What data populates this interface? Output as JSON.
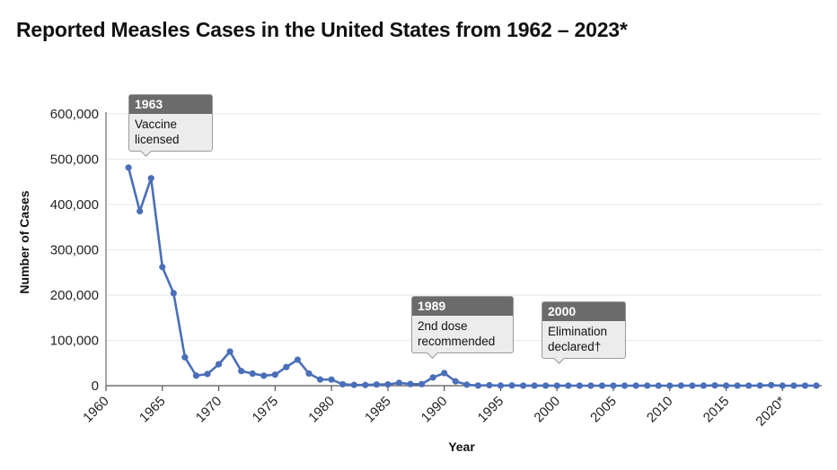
{
  "title": "Reported Measles Cases in the United States from 1962 – 2023*",
  "chart_data": {
    "type": "line",
    "title": "Reported Measles Cases in the United States from 1962 – 2023*",
    "xlabel": "Year",
    "ylabel": "Number of Cases",
    "xlim": [
      1960,
      2023
    ],
    "ylim": [
      0,
      600000
    ],
    "x_ticks": [
      1960,
      1965,
      1970,
      1975,
      1980,
      1985,
      1990,
      1995,
      2000,
      2005,
      2010,
      2015,
      2020
    ],
    "x_tick_labels": [
      "1960",
      "1965",
      "1970",
      "1975",
      "1980",
      "1985",
      "1990",
      "1995",
      "2000",
      "2005",
      "2010",
      "2015",
      "2020*"
    ],
    "y_ticks": [
      0,
      100000,
      200000,
      300000,
      400000,
      500000,
      600000
    ],
    "y_tick_labels": [
      "0",
      "100,000",
      "200,000",
      "300,000",
      "400,000",
      "500,000",
      "600,000"
    ],
    "grid": "horizontal",
    "series_color": "#4a6fb8",
    "series": [
      {
        "name": "Reported measles cases",
        "x": [
          1962,
          1963,
          1964,
          1965,
          1966,
          1967,
          1968,
          1969,
          1970,
          1971,
          1972,
          1973,
          1974,
          1975,
          1976,
          1977,
          1978,
          1979,
          1980,
          1981,
          1982,
          1983,
          1984,
          1985,
          1986,
          1987,
          1988,
          1989,
          1990,
          1991,
          1992,
          1993,
          1994,
          1995,
          1996,
          1997,
          1998,
          1999,
          2000,
          2001,
          2002,
          2003,
          2004,
          2005,
          2006,
          2007,
          2008,
          2009,
          2010,
          2011,
          2012,
          2013,
          2014,
          2015,
          2016,
          2017,
          2018,
          2019,
          2020,
          2021,
          2022,
          2023
        ],
        "values": [
          481530,
          385156,
          458083,
          261904,
          204136,
          62705,
          22231,
          25826,
          47351,
          75290,
          32275,
          26690,
          22094,
          24374,
          41126,
          57345,
          26871,
          13597,
          13506,
          3124,
          1714,
          1497,
          2587,
          2822,
          6282,
          3655,
          3396,
          18193,
          27786,
          9643,
          2237,
          312,
          963,
          281,
          508,
          138,
          100,
          100,
          86,
          116,
          44,
          56,
          37,
          66,
          55,
          43,
          140,
          71,
          63,
          220,
          55,
          187,
          667,
          188,
          86,
          120,
          375,
          1274,
          13,
          49,
          121,
          59
        ]
      }
    ],
    "annotations": [
      {
        "year_label": "1963",
        "text_lines": [
          "Vaccine",
          "licensed"
        ],
        "x": 1963
      },
      {
        "year_label": "1989",
        "text_lines": [
          "2nd dose",
          "recommended"
        ],
        "x": 1989
      },
      {
        "year_label": "2000",
        "text_lines": [
          "Elimination",
          "declared†"
        ],
        "x": 2000
      }
    ]
  }
}
